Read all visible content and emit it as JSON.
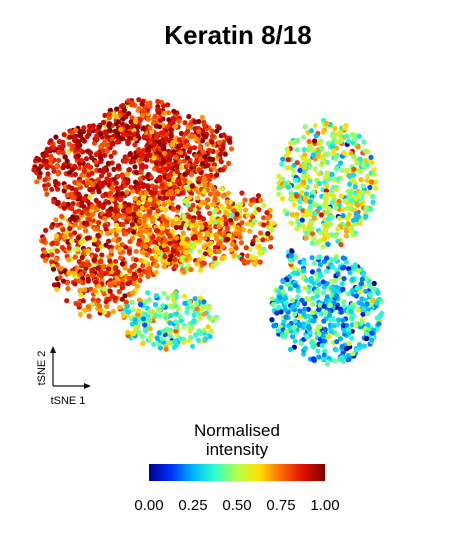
{
  "chart_data": {
    "type": "scatter",
    "title": "Keratin 8/18",
    "xlabel": "tSNE 1",
    "ylabel": "tSNE 2",
    "colorbar": {
      "label_line1": "Normalised",
      "label_line2": "intensity",
      "range": [
        0,
        1
      ],
      "ticks": [
        "0.00",
        "0.25",
        "0.50",
        "0.75",
        "1.00"
      ],
      "colormap": "jet",
      "stops": [
        "#00008f",
        "#0030ff",
        "#00b4ff",
        "#30ffcf",
        "#b4ff4a",
        "#ffe000",
        "#ff6a00",
        "#e01000",
        "#800000"
      ]
    },
    "clusters": [
      {
        "cx": -3.0,
        "cy": 1.4,
        "rx": 2.2,
        "ry": 1.4,
        "n": 700,
        "mean": 0.88,
        "sd": 0.08
      },
      {
        "cx": -0.7,
        "cy": 2.0,
        "rx": 1.2,
        "ry": 1.0,
        "n": 260,
        "mean": 0.86,
        "sd": 0.1
      },
      {
        "cx": -2.1,
        "cy": 2.9,
        "rx": 1.1,
        "ry": 0.6,
        "n": 160,
        "mean": 0.85,
        "sd": 0.1
      },
      {
        "cx": -0.8,
        "cy": -0.2,
        "rx": 1.6,
        "ry": 1.4,
        "n": 520,
        "mean": 0.72,
        "sd": 0.13
      },
      {
        "cx": -3.0,
        "cy": -0.8,
        "rx": 2.0,
        "ry": 1.2,
        "n": 420,
        "mean": 0.8,
        "sd": 0.12
      },
      {
        "cx": -3.4,
        "cy": -2.0,
        "rx": 1.2,
        "ry": 0.9,
        "n": 160,
        "mean": 0.8,
        "sd": 0.12
      },
      {
        "cx": 1.0,
        "cy": -0.3,
        "rx": 0.7,
        "ry": 1.1,
        "n": 100,
        "mean": 0.7,
        "sd": 0.15
      },
      {
        "cx": -1.3,
        "cy": -3.0,
        "rx": 1.4,
        "ry": 0.9,
        "n": 220,
        "mean": 0.45,
        "sd": 0.15
      },
      {
        "cx": 3.2,
        "cy": 1.0,
        "rx": 1.4,
        "ry": 1.9,
        "n": 480,
        "mean": 0.5,
        "sd": 0.15
      },
      {
        "cx": 3.2,
        "cy": -2.7,
        "rx": 1.6,
        "ry": 1.6,
        "n": 520,
        "mean": 0.3,
        "sd": 0.13
      },
      {
        "cx": 2.2,
        "cy": -1.2,
        "rx": 0.15,
        "ry": 0.3,
        "n": 12,
        "mean": 0.3,
        "sd": 0.2
      }
    ]
  }
}
